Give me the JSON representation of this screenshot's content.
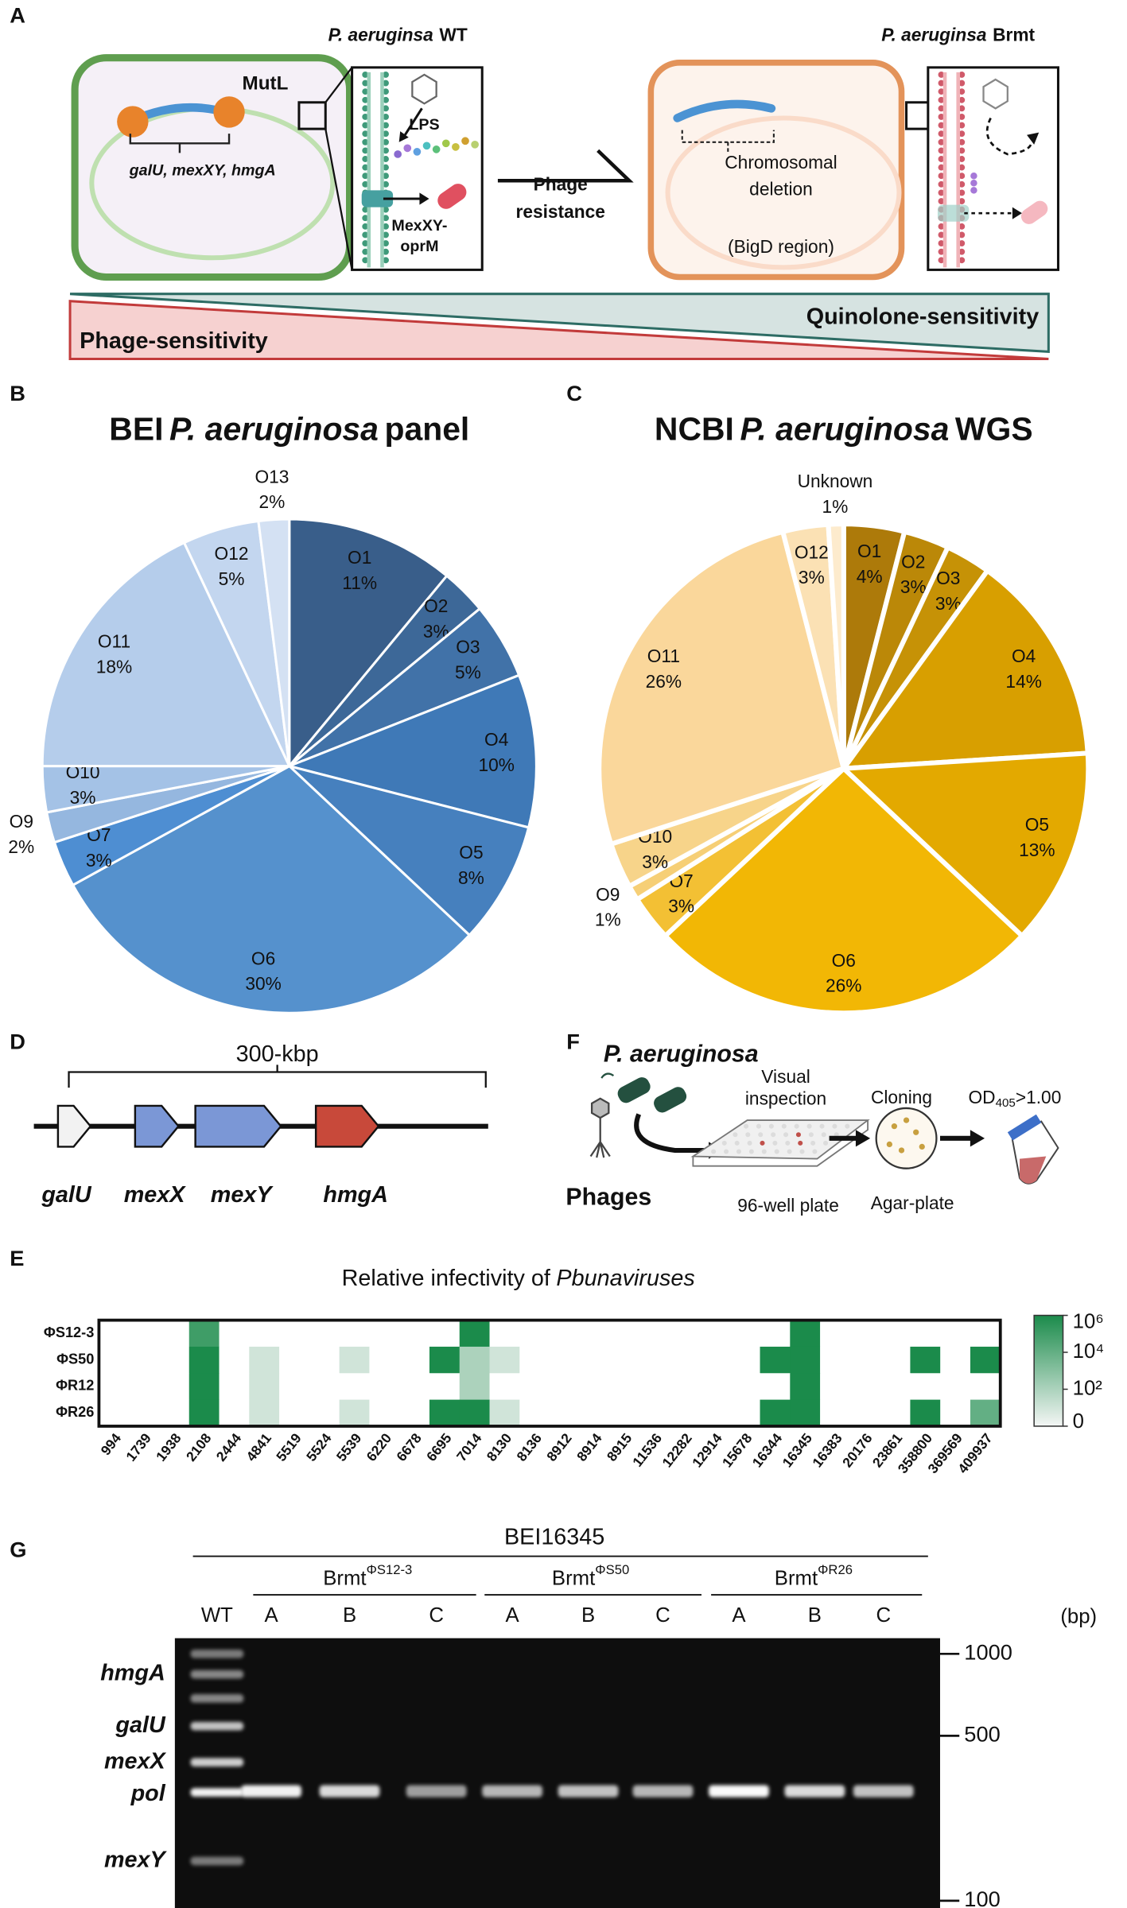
{
  "panel_labels": [
    "A",
    "B",
    "C",
    "D",
    "E",
    "F",
    "G"
  ],
  "panel_a": {
    "wt_title": [
      "P. aeruginsa",
      "WT"
    ],
    "mutl": "MutL",
    "genes": "galU, mexXY, hmgA",
    "lps": "LPS",
    "pump": [
      "MexXY-",
      "oprM"
    ],
    "arrow": [
      "Phage",
      "resistance"
    ],
    "brmt_title": [
      "P. aeruginsa",
      "Brmt"
    ],
    "deletion": [
      "Chromosomal",
      "deletion"
    ],
    "region": "(BigD region)",
    "quinolone": "Quinolone-sensitivity",
    "phage": "Phage-sensitivity"
  },
  "chart_data": [
    {
      "type": "pie",
      "title": [
        "BEI",
        "P. aeruginosa",
        "panel"
      ],
      "categories": [
        "O1",
        "O2",
        "O3",
        "O4",
        "O5",
        "O6",
        "O7",
        "O9",
        "O10",
        "O11",
        "O12",
        "O13"
      ],
      "values": [
        11,
        3,
        5,
        10,
        8,
        30,
        3,
        2,
        3,
        18,
        5,
        2
      ],
      "value_labels": [
        "11%",
        "3%",
        "5%",
        "10%",
        "8%",
        "30%",
        "3%",
        "2%",
        "3%",
        "18%",
        "5%",
        "2%"
      ],
      "colors": [
        "#395e8a",
        "#3d6898",
        "#4172a8",
        "#3f79b7",
        "#4680be",
        "#5591cd",
        "#4e8ed2",
        "#95b7df",
        "#a4c2e6",
        "#b5cdeb",
        "#c3d6ef",
        "#d4e1f3"
      ]
    },
    {
      "type": "pie",
      "title": [
        "NCBI",
        "P. aeruginosa",
        "WGS"
      ],
      "categories": [
        "O1",
        "O2",
        "O3",
        "O4",
        "O5",
        "O6",
        "O7",
        "O9",
        "O10",
        "O11",
        "O12",
        "Unknown"
      ],
      "values": [
        4,
        3,
        3,
        14,
        13,
        26,
        3,
        1,
        3,
        26,
        3,
        1
      ],
      "value_labels": [
        "4%",
        "3%",
        "3%",
        "14%",
        "13%",
        "26%",
        "3%",
        "1%",
        "3%",
        "26%",
        "3%",
        "1%"
      ],
      "colors": [
        "#ad7a0a",
        "#bb8808",
        "#c69206",
        "#d89f00",
        "#e3a900",
        "#f2b705",
        "#f3c034",
        "#f6cf76",
        "#f7d48a",
        "#fad79b",
        "#fbe1b4",
        "#fdebcd"
      ]
    },
    {
      "type": "heatmap",
      "title": [
        "Relative infectivity of",
        "Pbunaviruses"
      ],
      "rows": [
        "ΦS12-3",
        "ΦS50",
        "ΦR12",
        "ΦR26"
      ],
      "columns": [
        "994",
        "1739",
        "1938",
        "2108",
        "2444",
        "4841",
        "5519",
        "5524",
        "5539",
        "6220",
        "6678",
        "6695",
        "7014",
        "8130",
        "8136",
        "8912",
        "8914",
        "8915",
        "11536",
        "12282",
        "12914",
        "15678",
        "16344",
        "16345",
        "16383",
        "20176",
        "23861",
        "358800",
        "369569",
        "409937"
      ],
      "values": [
        [
          0,
          0,
          0,
          100000,
          0,
          0,
          0,
          0,
          0,
          0,
          0,
          0,
          1000000,
          0,
          0,
          0,
          0,
          0,
          0,
          0,
          0,
          0,
          0,
          1000000,
          0,
          0,
          0,
          0,
          0,
          0
        ],
        [
          0,
          0,
          0,
          1000000,
          0,
          10,
          0,
          0,
          10,
          0,
          0,
          1000000,
          100,
          10,
          0,
          0,
          0,
          0,
          0,
          0,
          0,
          0,
          1000000,
          1000000,
          0,
          0,
          0,
          1000000,
          0,
          1000000
        ],
        [
          0,
          0,
          0,
          1000000,
          0,
          10,
          0,
          0,
          0,
          0,
          0,
          0,
          100,
          0,
          0,
          0,
          0,
          0,
          0,
          0,
          0,
          0,
          0,
          1000000,
          0,
          0,
          0,
          0,
          0,
          0
        ],
        [
          0,
          0,
          0,
          1000000,
          0,
          10,
          0,
          0,
          10,
          0,
          0,
          1000000,
          1000000,
          10,
          0,
          0,
          0,
          0,
          0,
          0,
          0,
          0,
          1000000,
          1000000,
          0,
          0,
          0,
          1000000,
          0,
          10000
        ]
      ],
      "zlim": [
        0,
        1000000
      ],
      "log_scale": true,
      "zticks": [
        0,
        {
          "value": 100,
          "label": "10²"
        },
        {
          "value": 10000,
          "label": "10⁴"
        },
        {
          "value": 1000000,
          "label": "10⁶"
        }
      ],
      "colors": [
        "#f4f6f5",
        "#1b8b4b"
      ]
    }
  ],
  "panel_d": {
    "length": "300-kbp",
    "genes": [
      "galU",
      "mexX",
      "mexY",
      "hmgA"
    ]
  },
  "panel_f": {
    "organism": "P. aeruginosa",
    "phages": "Phages",
    "inspection": [
      "Visual",
      "inspection"
    ],
    "plate": "96-well plate",
    "cloning": "Cloning",
    "agar": "Agar-plate",
    "od": [
      "OD",
      "405",
      ">1.00"
    ]
  },
  "panel_g": {
    "title": "BEI16345",
    "groups": [
      [
        "Brmt",
        "ΦS12-3"
      ],
      [
        "Brmt",
        "ΦS50"
      ],
      [
        "Brmt",
        "ΦR26"
      ]
    ],
    "lanes": [
      "WT",
      "A",
      "B",
      "C",
      "A",
      "B",
      "C",
      "A",
      "B",
      "C"
    ],
    "genes": [
      "hmgA",
      "galU",
      "mexX",
      "pol",
      "mexY"
    ],
    "ladder": [
      "1000",
      "500",
      "100"
    ],
    "unit": "(bp)"
  }
}
